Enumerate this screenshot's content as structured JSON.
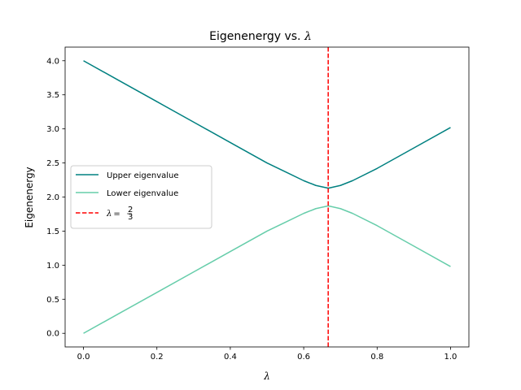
{
  "chart_data": {
    "type": "line",
    "title": "Eigenenergy vs.",
    "title_symbol": "λ",
    "xlabel": "λ",
    "ylabel": "Eigenenergy",
    "xlim": [
      -0.05,
      1.05
    ],
    "ylim": [
      -0.2,
      4.2
    ],
    "xticks": [
      0.0,
      0.2,
      0.4,
      0.6,
      0.8,
      1.0
    ],
    "xtick_labels": [
      "0.0",
      "0.2",
      "0.4",
      "0.6",
      "0.8",
      "1.0"
    ],
    "yticks": [
      0.0,
      0.5,
      1.0,
      1.5,
      2.0,
      2.5,
      3.0,
      3.5,
      4.0
    ],
    "ytick_labels": [
      "0.0",
      "0.5",
      "1.0",
      "1.5",
      "2.0",
      "2.5",
      "3.0",
      "3.5",
      "4.0"
    ],
    "grid": false,
    "legend_position": "center-left",
    "series": [
      {
        "name": "Upper eigenvalue",
        "color": "#008080",
        "x": [
          0.0,
          0.1,
          0.2,
          0.3,
          0.4,
          0.5,
          0.55,
          0.6,
          0.633,
          0.667,
          0.7,
          0.733,
          0.8,
          0.9,
          1.0
        ],
        "values": [
          4.0,
          3.7,
          3.4,
          3.1,
          2.8,
          2.5,
          2.37,
          2.24,
          2.17,
          2.13,
          2.17,
          2.24,
          2.42,
          2.72,
          3.02
        ]
      },
      {
        "name": "Lower eigenvalue",
        "color": "#66CDAA",
        "x": [
          0.0,
          0.1,
          0.2,
          0.3,
          0.4,
          0.5,
          0.55,
          0.6,
          0.633,
          0.667,
          0.7,
          0.733,
          0.8,
          0.9,
          1.0
        ],
        "values": [
          0.0,
          0.3,
          0.6,
          0.9,
          1.2,
          1.5,
          1.63,
          1.76,
          1.83,
          1.87,
          1.83,
          1.76,
          1.58,
          1.28,
          0.98
        ]
      }
    ],
    "vline": {
      "name": "λ = 2/3",
      "legend_prefix": "λ",
      "legend_equals": "=",
      "legend_num": "2",
      "legend_den": "3",
      "x": 0.6667,
      "color": "#FF0000",
      "style": "dashed"
    }
  }
}
